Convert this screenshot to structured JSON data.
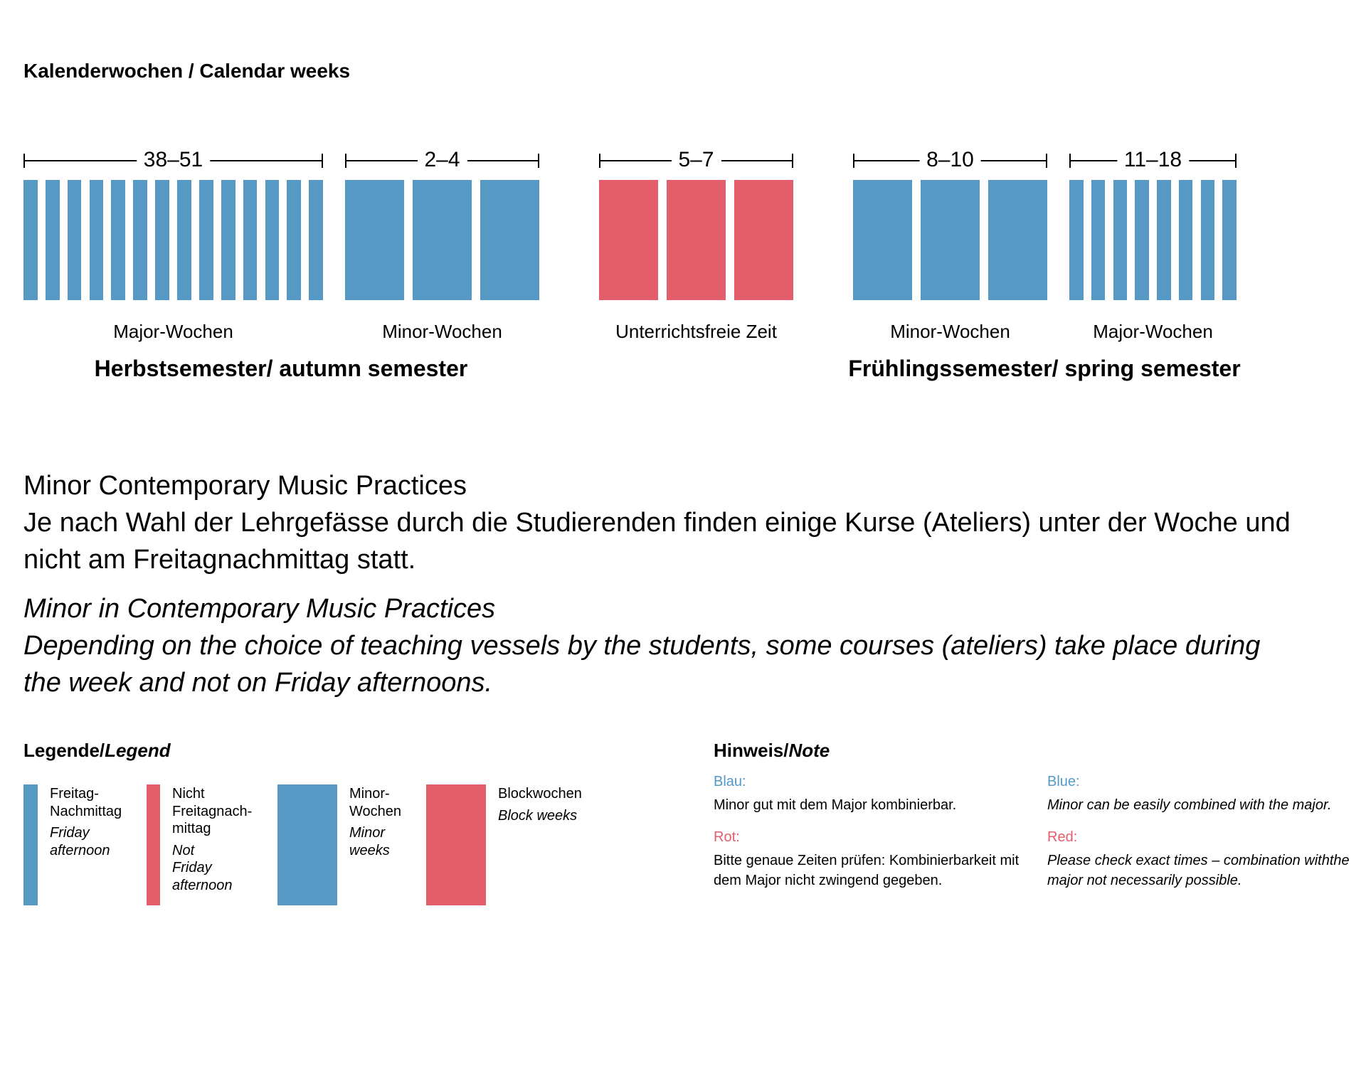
{
  "title": "Kalenderwochen / Calendar weeks",
  "colors": {
    "blue": "#5699c5",
    "red": "#e45d6a"
  },
  "groups": [
    {
      "weeks_label": "38–51",
      "week_count": 14,
      "kind": "major",
      "color": "blue",
      "label": "Major-Wochen"
    },
    {
      "weeks_label": "2–4",
      "week_count": 3,
      "kind": "minor",
      "color": "blue",
      "label": "Minor-Wochen"
    },
    {
      "weeks_label": "5–7",
      "week_count": 3,
      "kind": "block",
      "color": "red",
      "label": "Unterrichtsfreie Zeit"
    },
    {
      "weeks_label": "8–10",
      "week_count": 3,
      "kind": "minor",
      "color": "blue",
      "label": "Minor-Wochen"
    },
    {
      "weeks_label": "11–18",
      "week_count": 8,
      "kind": "major",
      "color": "blue",
      "label": "Major-Wochen"
    }
  ],
  "semesters": {
    "autumn": "Herbstsemester/ autumn semester",
    "spring": "Frühlingssemester/ spring semester"
  },
  "description": {
    "de_lines": [
      "Minor Contemporary Music Practices",
      "Je nach Wahl der Lehrgefässe durch die Studierenden finden einige Kurse (Ateliers) unter der Woche und",
      "nicht am Freitagnachmittag statt."
    ],
    "en_lines": [
      "Minor in Contemporary Music Practices",
      "Depending on the choice of teaching vessels by the students, some courses (ateliers) take place during",
      "the week and not on Friday afternoons."
    ]
  },
  "legend": {
    "title_de": "Legende/",
    "title_en": "Legend",
    "items": [
      {
        "color": "blue",
        "de": [
          "Freitag-",
          "Nachmittag"
        ],
        "en": [
          "Friday",
          "afternoon"
        ]
      },
      {
        "color": "red",
        "de": [
          "Nicht",
          "Freitagnach-",
          "mittag"
        ],
        "en": [
          "Not",
          "Friday",
          "afternoon"
        ]
      },
      {
        "color": "blue",
        "de": [
          "Minor-",
          "Wochen"
        ],
        "en": [
          "Minor",
          "weeks"
        ]
      },
      {
        "color": "red",
        "de": [
          "Blockwochen"
        ],
        "en": [
          "Block weeks"
        ]
      }
    ]
  },
  "note": {
    "title_de": "Hinweis/",
    "title_en": "Note",
    "blue_de": "Blau:",
    "blue_de_text": "Minor gut mit dem Major kombinierbar.",
    "red_de": "Rot:",
    "red_de_text": [
      "Bitte genaue Zeiten prüfen: Kombinierbarkeit mit",
      "dem Major nicht zwingend gegeben."
    ],
    "blue_en": "Blue:",
    "blue_en_text": "Minor can be easily combined with the major.",
    "red_en": "Red:",
    "red_en_text": [
      "Please check exact times – combination withthe",
      "major not necessarily possible."
    ]
  }
}
